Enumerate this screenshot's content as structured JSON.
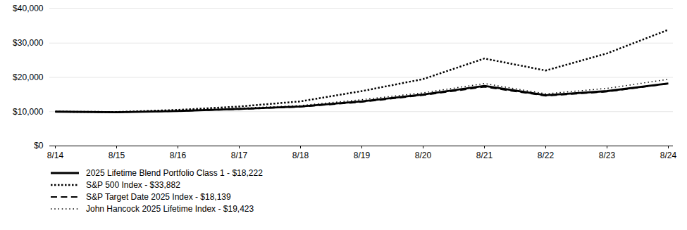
{
  "chart_data": {
    "type": "line",
    "categories": [
      "8/14",
      "8/15",
      "8/16",
      "8/17",
      "8/18",
      "8/19",
      "8/20",
      "8/21",
      "8/22",
      "8/23",
      "8/24"
    ],
    "series": [
      {
        "name": "2025 Lifetime Blend Portfolio Class 1 - $18,222",
        "color": "#000000",
        "line_style": "solid",
        "values": [
          10000,
          9800,
          10200,
          10800,
          11500,
          13000,
          15000,
          17500,
          14800,
          16000,
          18222
        ]
      },
      {
        "name": "S&P 500 Index - $33,882",
        "color": "#000000",
        "line_style": "dense_dotted",
        "values": [
          10000,
          9900,
          10500,
          11500,
          13000,
          16000,
          19500,
          25500,
          22000,
          27000,
          33882
        ]
      },
      {
        "name": "S&P Target Date 2025 Index - $18,139",
        "color": "#000000",
        "line_style": "dashed",
        "values": [
          10000,
          9850,
          10150,
          10700,
          11400,
          12800,
          14800,
          17200,
          14600,
          15800,
          18139
        ]
      },
      {
        "name": "John Hancock 2025 Lifetime Index - $19,423",
        "color": "#000000",
        "line_style": "dotted",
        "values": [
          10000,
          9900,
          10300,
          11000,
          11800,
          13500,
          15500,
          18200,
          15200,
          16800,
          19423
        ]
      }
    ],
    "ylim": [
      0,
      40000
    ],
    "yticks": [
      {
        "value": 0,
        "label": "$0"
      },
      {
        "value": 10000,
        "label": "$10,000"
      },
      {
        "value": 20000,
        "label": "$20,000"
      },
      {
        "value": 30000,
        "label": "$30,000"
      },
      {
        "value": 40000,
        "label": "$40,000"
      }
    ],
    "grid": true,
    "legend": "bottom"
  }
}
